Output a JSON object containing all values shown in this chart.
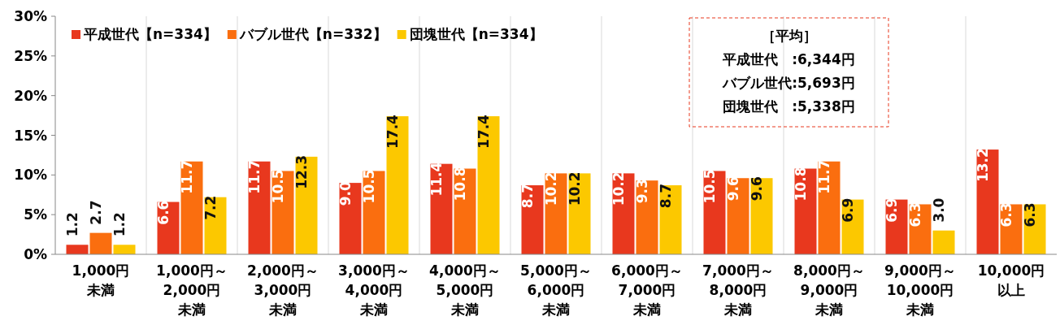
{
  "chart_data": {
    "type": "bar",
    "categories": [
      "1,000円未満",
      "1,000円～2,000円未満",
      "2,000円～3,000円未満",
      "3,000円～4,000円未満",
      "4,000円～5,000円未満",
      "5,000円～6,000円未満",
      "6,000円～7,000円未満",
      "7,000円～8,000円未満",
      "8,000円～9,000円未満",
      "9,000円～10,000円未満",
      "10,000円以上"
    ],
    "series": [
      {
        "name": "平成世代【n=334】",
        "color": "#e8381e",
        "values": [
          1.2,
          6.6,
          11.7,
          9.0,
          11.4,
          8.7,
          10.2,
          10.5,
          10.8,
          6.9,
          13.2
        ],
        "value_labels": [
          "1.2",
          "6.6",
          "11.7",
          "9.0",
          "11.4",
          "8.7",
          "10.2",
          "10.5",
          "10.8",
          "6.9",
          "13.2"
        ]
      },
      {
        "name": "バブル世代【n=332】",
        "color": "#fa6e0f",
        "values": [
          2.7,
          11.7,
          10.5,
          10.5,
          10.8,
          10.2,
          9.3,
          9.6,
          11.7,
          6.3,
          6.3
        ],
        "value_labels": [
          "2.7",
          "11.7",
          "10.5",
          "10.5",
          "10.8",
          "10.2",
          "9.3",
          "9.6",
          "11.7",
          "6.3",
          "6.3"
        ]
      },
      {
        "name": "団塊世代【n=334】",
        "color": "#fcc800",
        "values": [
          1.2,
          7.2,
          12.3,
          17.4,
          17.4,
          10.2,
          8.7,
          9.6,
          6.9,
          3.0,
          6.3
        ],
        "value_labels": [
          "1.2",
          "7.2",
          "12.3",
          "17.4",
          "17.4",
          "10.2",
          "8.7",
          "9.6",
          "6.9",
          "3.0",
          "6.3"
        ]
      }
    ],
    "ylim": [
      0,
      30
    ],
    "yticks": [
      {
        "value": 0,
        "label": "0%"
      },
      {
        "value": 5,
        "label": "5%"
      },
      {
        "value": 10,
        "label": "10%"
      },
      {
        "value": 15,
        "label": "15%"
      },
      {
        "value": 20,
        "label": "20%"
      },
      {
        "value": 25,
        "label": "25%"
      },
      {
        "value": 30,
        "label": "30%"
      }
    ],
    "grid": "x",
    "legend": "top left",
    "annotations": [
      "［平均］",
      "平成世代　:6,344円",
      "バブル世代:5,693円",
      "団塊世代　:5,338円"
    ]
  }
}
